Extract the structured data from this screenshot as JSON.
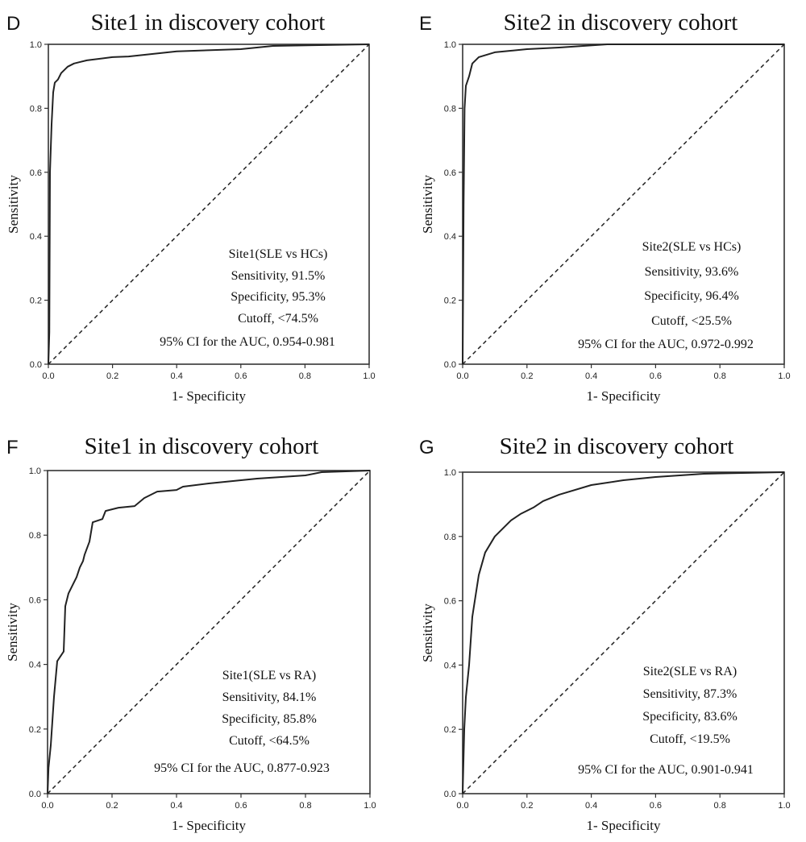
{
  "chart_data": [
    {
      "type": "line",
      "panel": "D",
      "title": "Site1 in discovery cohort",
      "xlabel": "1- Specificity",
      "ylabel": "Sensitivity",
      "xlim": [
        0,
        1
      ],
      "ylim": [
        0,
        1
      ],
      "ticks": [
        "0.0",
        "0.2",
        "0.4",
        "0.6",
        "0.8",
        "1.0"
      ],
      "annotation": [
        "Site1(SLE vs HCs)",
        "Sensitivity, 91.5%",
        "Specificity, 95.3%",
        "Cutoff, <74.5%",
        "95% CI for the AUC, 0.954-0.981"
      ],
      "series": [
        {
          "name": "ROC",
          "x": [
            0,
            0.003,
            0.005,
            0.01,
            0.015,
            0.02,
            0.03,
            0.04,
            0.06,
            0.08,
            0.1,
            0.12,
            0.2,
            0.25,
            0.4,
            0.6,
            0.7,
            1
          ],
          "y": [
            0,
            0.1,
            0.6,
            0.75,
            0.85,
            0.88,
            0.89,
            0.91,
            0.93,
            0.94,
            0.945,
            0.95,
            0.96,
            0.962,
            0.978,
            0.985,
            0.995,
            1
          ]
        },
        {
          "name": "Reference",
          "x": [
            0,
            1
          ],
          "y": [
            0,
            1
          ]
        }
      ]
    },
    {
      "type": "line",
      "panel": "E",
      "title": "Site2 in discovery cohort",
      "xlabel": "1- Specificity",
      "ylabel": "Sensitivity",
      "xlim": [
        0,
        1
      ],
      "ylim": [
        0,
        1
      ],
      "ticks": [
        "0.0",
        "0.2",
        "0.4",
        "0.6",
        "0.8",
        "1.0"
      ],
      "annotation": [
        "Site2(SLE vs HCs)",
        "Sensitivity, 93.6%",
        "Specificity, 96.4%",
        "Cutoff, <25.5%",
        "95% CI for the AUC, 0.972-0.992"
      ],
      "series": [
        {
          "name": "ROC",
          "x": [
            0,
            0.003,
            0.006,
            0.01,
            0.02,
            0.03,
            0.05,
            0.1,
            0.2,
            0.3,
            0.45,
            1
          ],
          "y": [
            0,
            0.5,
            0.8,
            0.87,
            0.9,
            0.94,
            0.96,
            0.975,
            0.985,
            0.99,
            1,
            1
          ]
        },
        {
          "name": "Reference",
          "x": [
            0,
            1
          ],
          "y": [
            0,
            1
          ]
        }
      ]
    },
    {
      "type": "line",
      "panel": "F",
      "title": "Site1 in discovery cohort",
      "xlabel": "1- Specificity",
      "ylabel": "Sensitivity",
      "xlim": [
        0,
        1
      ],
      "ylim": [
        0,
        1
      ],
      "ticks": [
        "0.0",
        "0.2",
        "0.4",
        "0.6",
        "0.8",
        "1.0"
      ],
      "annotation": [
        "Site1(SLE vs RA)",
        "Sensitivity, 84.1%",
        "Specificity, 85.8%",
        "Cutoff, <64.5%",
        "95% CI for the AUC, 0.877-0.923"
      ],
      "series": [
        {
          "name": "ROC",
          "x": [
            0,
            0.003,
            0.01,
            0.02,
            0.03,
            0.05,
            0.055,
            0.065,
            0.08,
            0.09,
            0.1,
            0.11,
            0.115,
            0.13,
            0.14,
            0.17,
            0.18,
            0.22,
            0.27,
            0.3,
            0.34,
            0.4,
            0.42,
            0.5,
            0.65,
            0.8,
            0.85,
            1
          ],
          "y": [
            0,
            0.08,
            0.15,
            0.3,
            0.41,
            0.44,
            0.58,
            0.62,
            0.65,
            0.67,
            0.7,
            0.72,
            0.74,
            0.78,
            0.84,
            0.85,
            0.875,
            0.885,
            0.89,
            0.915,
            0.935,
            0.94,
            0.95,
            0.96,
            0.975,
            0.985,
            0.995,
            1
          ]
        },
        {
          "name": "Reference",
          "x": [
            0,
            1
          ],
          "y": [
            0,
            1
          ]
        }
      ]
    },
    {
      "type": "line",
      "panel": "G",
      "title": "Site2 in discovery cohort",
      "xlabel": "1- Specificity",
      "ylabel": "Sensitivity",
      "xlim": [
        0,
        1
      ],
      "ylim": [
        0,
        1
      ],
      "ticks": [
        "0.0",
        "0.2",
        "0.4",
        "0.6",
        "0.8",
        "1.0"
      ],
      "annotation": [
        "Site2(SLE vs RA)",
        "Sensitivity, 87.3%",
        "Specificity, 83.6%",
        "Cutoff, <19.5%",
        "95% CI for the AUC, 0.901-0.941"
      ],
      "series": [
        {
          "name": "ROC",
          "x": [
            0,
            0.005,
            0.01,
            0.02,
            0.03,
            0.05,
            0.07,
            0.1,
            0.15,
            0.18,
            0.22,
            0.25,
            0.3,
            0.4,
            0.5,
            0.6,
            0.75,
            1
          ],
          "y": [
            0,
            0.2,
            0.3,
            0.4,
            0.55,
            0.68,
            0.75,
            0.8,
            0.85,
            0.87,
            0.89,
            0.91,
            0.93,
            0.96,
            0.975,
            0.985,
            0.995,
            1
          ]
        },
        {
          "name": "Reference",
          "x": [
            0,
            1
          ],
          "y": [
            0,
            1
          ]
        }
      ]
    }
  ]
}
